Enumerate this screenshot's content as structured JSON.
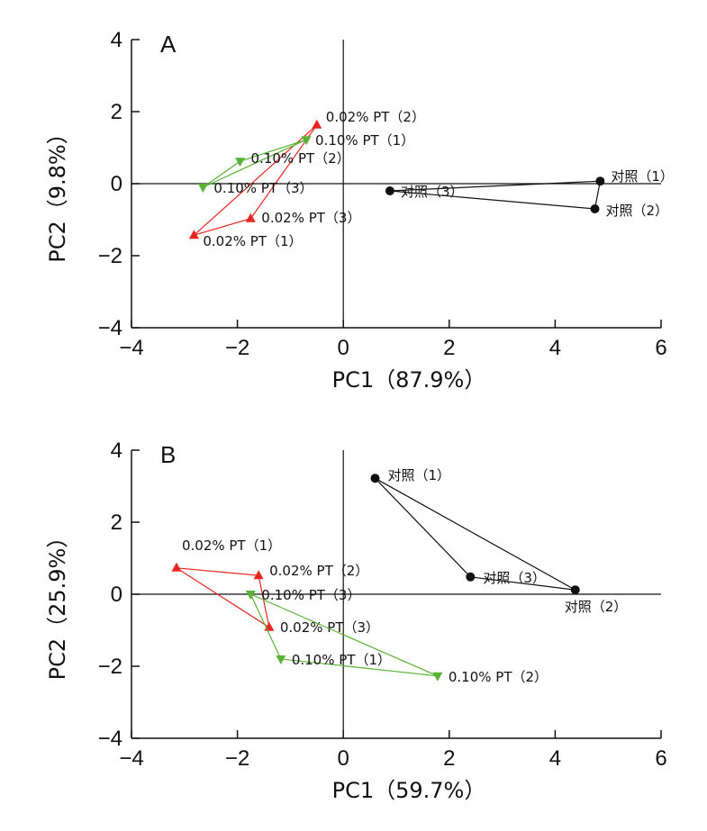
{
  "chart_data": [
    {
      "type": "scatter",
      "panel": "A",
      "xlabel": "PC1（87.9%）",
      "ylabel": "PC2（9.8%）",
      "xlim": [
        -4,
        6
      ],
      "ylim": [
        -4,
        4
      ],
      "xticks": [
        "−4",
        "−2",
        "0",
        "2",
        "4",
        "6"
      ],
      "yticks": [
        "−4",
        "−2",
        "0",
        "2",
        "4"
      ],
      "series": [
        {
          "color": "#e8251f",
          "marker": "triangle-up",
          "points": [
            {
              "x": -0.5,
              "y": 1.63,
              "label": "0.02% PT（2）"
            },
            {
              "x": -1.75,
              "y": -0.97,
              "label": "0.02% PT（3）"
            },
            {
              "x": -2.82,
              "y": -1.43,
              "label": "0.02% PT（1）"
            }
          ]
        },
        {
          "color": "#5ab234",
          "marker": "triangle-down",
          "points": [
            {
              "x": -0.7,
              "y": 1.22,
              "label": "0.10% PT（1）"
            },
            {
              "x": -1.95,
              "y": 0.62,
              "label": "0.10% PT（2）"
            },
            {
              "x": -2.65,
              "y": -0.1,
              "label": "0.10% PT（3）"
            }
          ]
        },
        {
          "color": "#111111",
          "marker": "circle",
          "points": [
            {
              "x": 4.85,
              "y": 0.07,
              "label": "对照（1）"
            },
            {
              "x": 4.75,
              "y": -0.7,
              "label": "对照（2）"
            },
            {
              "x": 0.88,
              "y": -0.2,
              "label": "对照（3）"
            }
          ]
        }
      ]
    },
    {
      "type": "scatter",
      "panel": "B",
      "xlabel": "PC1（59.7%）",
      "ylabel": "PC2（25.9%）",
      "xlim": [
        -4,
        6
      ],
      "ylim": [
        -4,
        4
      ],
      "xticks": [
        "−4",
        "−2",
        "0",
        "2",
        "4",
        "6"
      ],
      "yticks": [
        "−4",
        "−2",
        "0",
        "2",
        "4"
      ],
      "series": [
        {
          "color": "#e8251f",
          "marker": "triangle-up",
          "points": [
            {
              "x": -3.15,
              "y": 0.73,
              "label": "0.02% PT（1）"
            },
            {
              "x": -1.6,
              "y": 0.52,
              "label": "0.02% PT（2）"
            },
            {
              "x": -1.4,
              "y": -0.92,
              "label": "0.02% PT（3）"
            }
          ]
        },
        {
          "color": "#5ab234",
          "marker": "triangle-down",
          "points": [
            {
              "x": -1.75,
              "y": 0.0,
              "label": "0.10% PT（3）"
            },
            {
              "x": -1.18,
              "y": -1.8,
              "label": "0.10% PT（1）"
            },
            {
              "x": 1.78,
              "y": -2.27,
              "label": "0.10% PT（2）"
            }
          ]
        },
        {
          "color": "#111111",
          "marker": "circle",
          "points": [
            {
              "x": 0.6,
              "y": 3.22,
              "label": "对照（1）"
            },
            {
              "x": 4.38,
              "y": 0.12,
              "label": "对照（2）"
            },
            {
              "x": 2.4,
              "y": 0.48,
              "label": "对照（3）"
            }
          ]
        }
      ]
    }
  ]
}
